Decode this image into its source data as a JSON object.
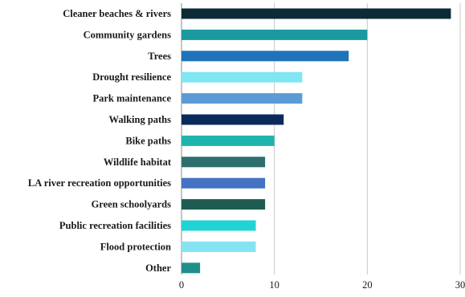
{
  "chart_data": {
    "type": "bar",
    "orientation": "horizontal",
    "title": "",
    "xlabel": "",
    "ylabel": "",
    "categories": [
      "Cleaner beaches & rivers",
      "Community gardens",
      "Trees",
      "Drought resilience",
      "Park maintenance",
      "Walking paths",
      "Bike paths",
      "Wildlife habitat",
      "LA river recreation opportunities",
      "Green schoolyards",
      "Public recreation facilities",
      "Flood protection",
      "Other"
    ],
    "values": [
      29,
      20,
      18,
      13,
      13,
      11,
      10,
      9,
      9,
      9,
      8,
      8,
      2
    ],
    "colors": [
      "#0d2b36",
      "#1a9aa0",
      "#1f73b8",
      "#7fe6f2",
      "#5b9bd5",
      "#0a2a5c",
      "#1fb3ab",
      "#2c6f6e",
      "#4472c4",
      "#1d5c52",
      "#22d3d3",
      "#86e4f2",
      "#1f8f8c"
    ],
    "xlim": [
      0,
      30
    ],
    "xticks": [
      0,
      10,
      20,
      30
    ],
    "grid": true,
    "legend": "none"
  }
}
